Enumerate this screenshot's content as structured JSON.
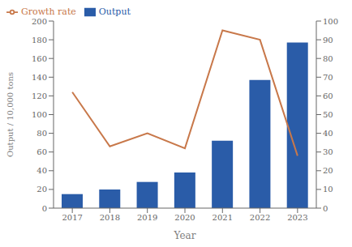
{
  "chart_data": {
    "type": "bar",
    "categories": [
      "2017",
      "2018",
      "2019",
      "2020",
      "2021",
      "2022",
      "2023"
    ],
    "series": [
      {
        "name": "Output",
        "type": "bar",
        "color": "#2a5ca8",
        "axis": "y",
        "values": [
          15,
          20,
          28,
          38,
          72,
          137,
          177
        ]
      },
      {
        "name": "Growth rate",
        "type": "line",
        "color": "#c8784a",
        "axis": "y2",
        "values": [
          62,
          33,
          40,
          32,
          95,
          90,
          28
        ]
      }
    ],
    "xlabel": "Year",
    "ylabel": "Output / 10,000 tons",
    "ylim": [
      0,
      200
    ],
    "yticks": [
      0,
      20,
      40,
      60,
      80,
      100,
      120,
      140,
      160,
      180,
      200
    ],
    "y2lim": [
      0,
      100
    ],
    "y2ticks": [
      0,
      10,
      20,
      30,
      40,
      50,
      60,
      70,
      80,
      90,
      100
    ],
    "grid": false,
    "legend": "upper left"
  }
}
